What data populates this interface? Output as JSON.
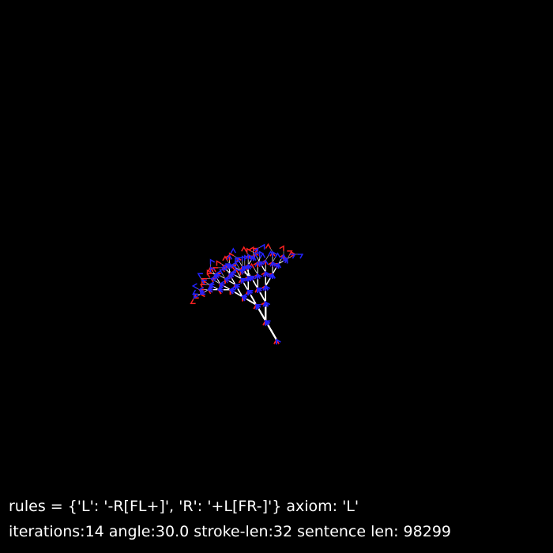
{
  "rules_text": "rules = {'L': '-R[FL+]', 'R': '+L[FR-]'} axiom: 'L'",
  "params_text": "iterations:14 angle:30.0 stroke-len:32 sentence len: 98299",
  "lsystem": {
    "axiom": "L",
    "rules": {
      "L": "-R[FL+]",
      "R": "+L[FR-]"
    },
    "iterations": 14,
    "angle": 30.0,
    "stroke_len": 32,
    "sentence_len": 98299
  },
  "colors": {
    "background": "#000000",
    "branch": "#ffffff",
    "plus_marker": "#ff2222",
    "minus_marker": "#2222ff",
    "text": "#ffffff"
  }
}
